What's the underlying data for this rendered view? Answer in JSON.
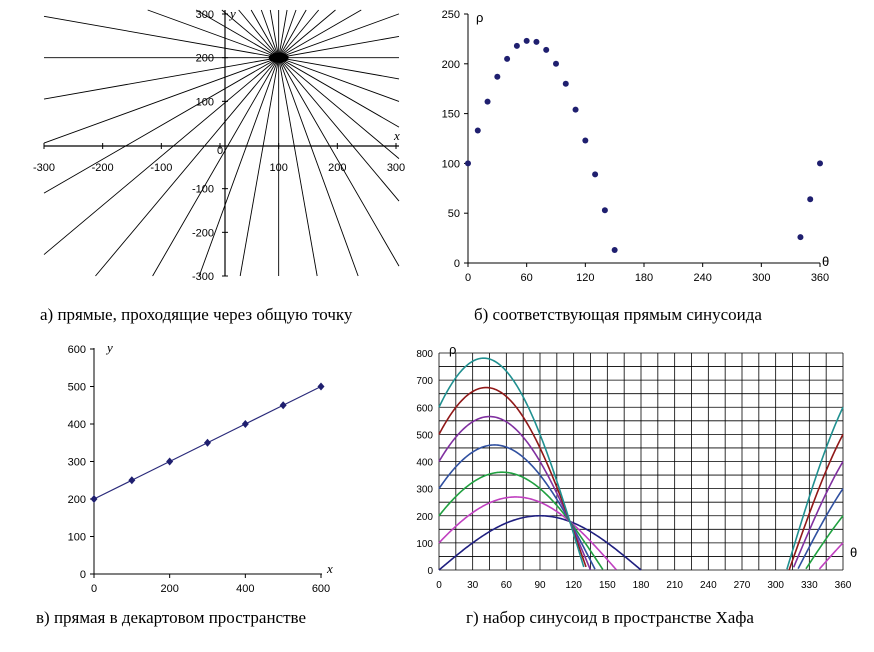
{
  "chart_data": [
    {
      "type": "line",
      "panel": "a",
      "caption": "а) прямые, проходящие через общую точку",
      "xlabel": "x",
      "ylabel": "y",
      "xlim": [
        -300,
        300
      ],
      "ylim": [
        -300,
        300
      ],
      "x_ticks": [
        "-300",
        "-200",
        "-100",
        "0",
        "100",
        "200",
        "300"
      ],
      "y_ticks": [
        "300",
        "200",
        "100",
        "0",
        "-100",
        "-200",
        "-300"
      ],
      "common_point": [
        100,
        200
      ],
      "line_count": 36,
      "line_angle_step_deg": 10
    },
    {
      "type": "scatter",
      "panel": "b",
      "caption": "б) соответствующая прямым синусоида",
      "xlabel": "θ",
      "ylabel": "ρ",
      "xlim": [
        0,
        360
      ],
      "ylim": [
        0,
        250
      ],
      "x_ticks": [
        "0",
        "60",
        "120",
        "180",
        "240",
        "300",
        "360"
      ],
      "y_ticks": [
        "250",
        "200",
        "150",
        "100",
        "50",
        "0"
      ],
      "points": [
        [
          0,
          100
        ],
        [
          10,
          133
        ],
        [
          20,
          162
        ],
        [
          30,
          187
        ],
        [
          40,
          205
        ],
        [
          50,
          218
        ],
        [
          60,
          223
        ],
        [
          70,
          222
        ],
        [
          80,
          214
        ],
        [
          90,
          200
        ],
        [
          100,
          180
        ],
        [
          110,
          154
        ],
        [
          120,
          123
        ],
        [
          130,
          89
        ],
        [
          140,
          53
        ],
        [
          150,
          13
        ],
        [
          340,
          26
        ],
        [
          350,
          64
        ],
        [
          360,
          100
        ]
      ]
    },
    {
      "type": "line",
      "panel": "c",
      "caption": "в) прямая в декартовом пространстве",
      "xlabel": "x",
      "ylabel": "y",
      "xlim": [
        0,
        600
      ],
      "ylim": [
        0,
        600
      ],
      "x_ticks": [
        "0",
        "200",
        "400",
        "600"
      ],
      "y_ticks": [
        "600",
        "500",
        "400",
        "300",
        "200",
        "100",
        "0"
      ],
      "points": [
        [
          0,
          200
        ],
        [
          100,
          250
        ],
        [
          200,
          300
        ],
        [
          300,
          350
        ],
        [
          400,
          400
        ],
        [
          500,
          450
        ],
        [
          600,
          500
        ]
      ]
    },
    {
      "type": "line",
      "panel": "d",
      "caption": "г) набор синусоид в пространстве Хафа",
      "xlabel": "θ",
      "ylabel": "ρ",
      "xlim": [
        0,
        360
      ],
      "ylim": [
        0,
        800
      ],
      "grid": true,
      "x_ticks": [
        "0",
        "30",
        "60",
        "90",
        "120",
        "150",
        "180",
        "210",
        "240",
        "270",
        "300",
        "330",
        "360"
      ],
      "y_ticks": [
        "800",
        "700",
        "600",
        "500",
        "400",
        "300",
        "200",
        "100",
        "0"
      ],
      "common_crossing": [
        123,
        180
      ],
      "series": [
        {
          "x0": 0,
          "y0": 200,
          "color": "#1F1F80"
        },
        {
          "x0": 100,
          "y0": 250,
          "color": "#C040C0"
        },
        {
          "x0": 200,
          "y0": 300,
          "color": "#20A040"
        },
        {
          "x0": 300,
          "y0": 350,
          "color": "#3050A0"
        },
        {
          "x0": 400,
          "y0": 400,
          "color": "#8030A0"
        },
        {
          "x0": 500,
          "y0": 450,
          "color": "#901818"
        },
        {
          "x0": 600,
          "y0": 500,
          "color": "#209090"
        }
      ]
    }
  ],
  "colors": {
    "marker": "#1F1F6F",
    "axis": "#000000",
    "grid": "#000000"
  }
}
